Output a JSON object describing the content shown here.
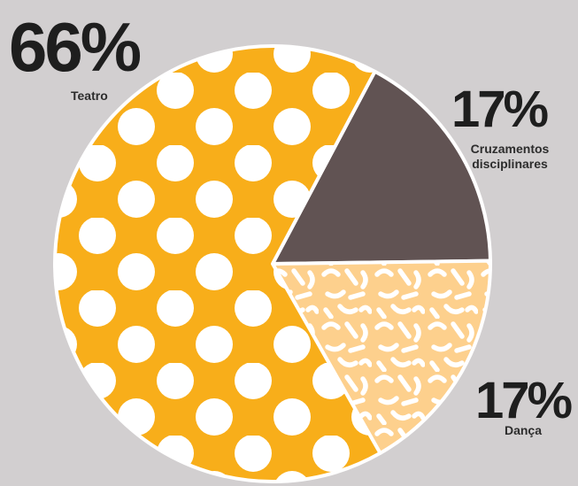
{
  "chart_data": {
    "type": "pie",
    "categories": [
      "Teatro",
      "Cruzamentos disciplinares",
      "Dança"
    ],
    "values": [
      66,
      17,
      17
    ],
    "value_labels": [
      "66%",
      "17%",
      "17%"
    ],
    "colors": {
      "Teatro": "#f8ae1a",
      "Cruzamentos disciplinares": "#615353",
      "Dança": "#fdd08d",
      "pattern": "#ffffff",
      "background": "#d2cfd0"
    },
    "patterns": {
      "Teatro": "white dots",
      "Cruzamentos disciplinares": "solid",
      "Dança": "white squiggles"
    },
    "title": "",
    "legend": "none"
  }
}
